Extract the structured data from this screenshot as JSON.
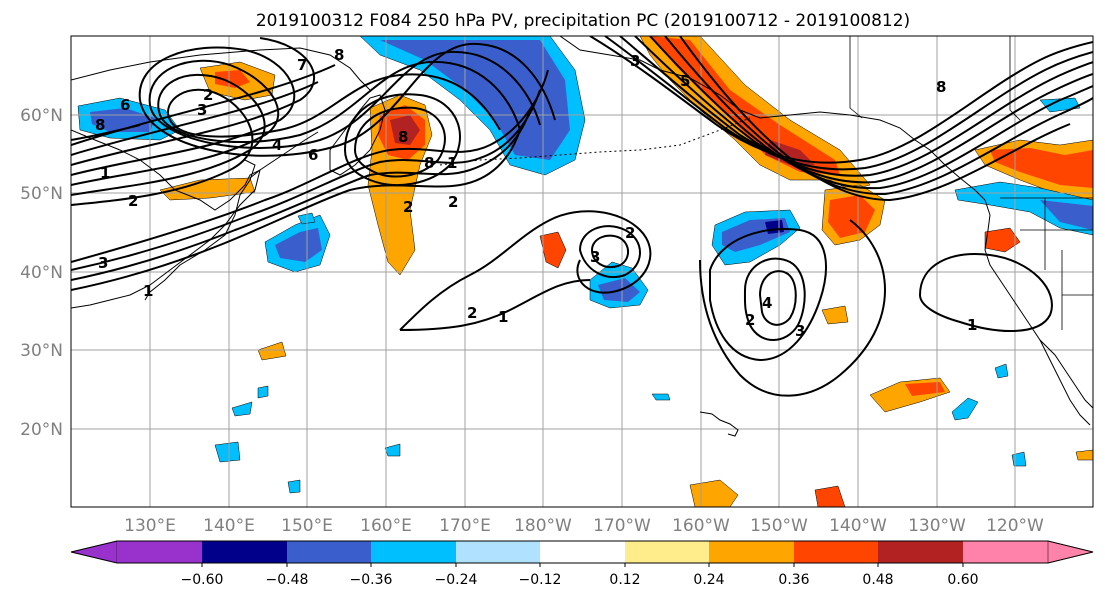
{
  "title": "2019100312 F084 250 hPa PV, precipitation PC (2019100712 - 2019100812)",
  "latitude_labels": [
    "60°N",
    "50°N",
    "40°N",
    "30°N",
    "20°N"
  ],
  "longitude_labels": [
    "130°E",
    "140°E",
    "150°E",
    "160°E",
    "170°E",
    "180°W",
    "170°W",
    "160°W",
    "150°W",
    "140°W",
    "130°W",
    "120°W"
  ],
  "pv_contour_labels": {
    "a": "2",
    "b": "3",
    "c": "8",
    "d": "7",
    "e": "6",
    "f": "8",
    "g": "4",
    "h": "6",
    "i": "2",
    "j": "1",
    "k": "3",
    "l": "1",
    "m": "8",
    "n": "2",
    "o": "8",
    "p": "2",
    "q": "1",
    "r": "2",
    "s": "3",
    "t": "2",
    "u": "1",
    "v": "4",
    "w": "2",
    "x": "3",
    "y": "1",
    "z": "3",
    "aa": "8",
    "ab": "5"
  },
  "colorbar": {
    "tick_labels": [
      "−0.60",
      "−0.48",
      "−0.36",
      "−0.24",
      "−0.12",
      "0.12",
      "0.24",
      "0.36",
      "0.48",
      "0.60"
    ],
    "colors": {
      "below_min": "#9932cc",
      "bin_1": "#00008b",
      "bin_2": "#3a5fcd",
      "bin_3": "#00bfff",
      "bin_4": "#b0e2ff",
      "bin_5": "#ffffff",
      "bin_6": "#ffec8b",
      "bin_7": "#ffa500",
      "bin_8": "#ff4500",
      "bin_9": "#b22222",
      "above_max": "#ff82ab"
    }
  }
}
